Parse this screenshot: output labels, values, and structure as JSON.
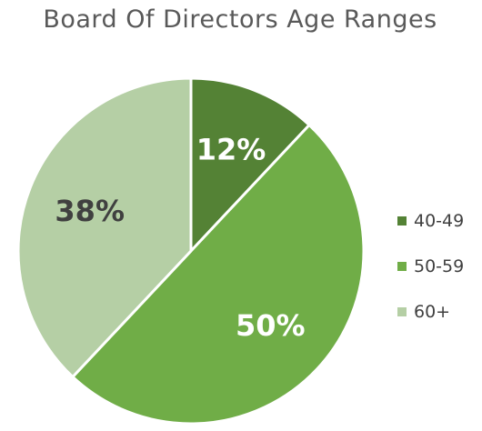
{
  "chart_data": {
    "type": "pie",
    "title": "Board Of Directors Age Ranges",
    "categories": [
      "40-49",
      "50-59",
      "60+"
    ],
    "values": [
      12,
      50,
      38
    ],
    "data_labels": [
      "12%",
      "50%",
      "38%"
    ],
    "colors": [
      "#548235",
      "#70AD47",
      "#B5CFA5"
    ],
    "label_colors": [
      "#ffffff",
      "#ffffff",
      "#404040"
    ],
    "legend": "right"
  }
}
